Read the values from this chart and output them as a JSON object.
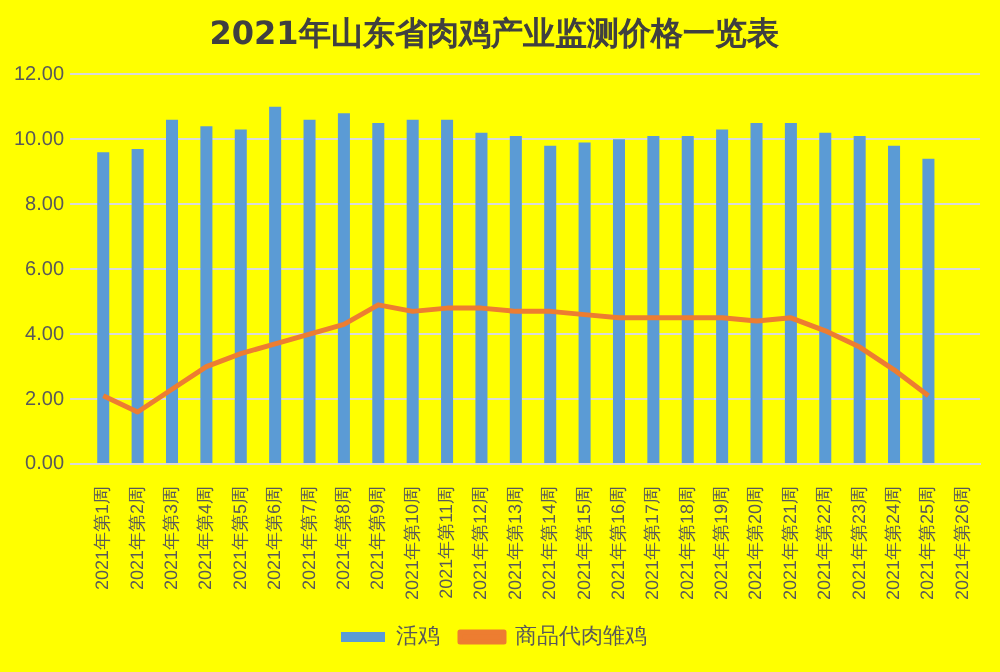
{
  "chart_data": {
    "type": "bar",
    "title": "2021年山东省肉鸡产业监测价格一览表",
    "categories": [
      "2021年第1周",
      "2021年第2周",
      "2021年第3周",
      "2021年第4周",
      "2021年第5周",
      "2021年第6周",
      "2021年第7周",
      "2021年第8周",
      "2021年第9周",
      "2021年第10周",
      "2021年第11周",
      "2021年第12周",
      "2021年第13周",
      "2021年第14周",
      "2021年第15周",
      "2021年第16周",
      "2021年第17周",
      "2021年第18周",
      "2021年第19周",
      "2021年第20周",
      "2021年第21周",
      "2021年第22周",
      "2021年第23周",
      "2021年第24周",
      "2021年第25周",
      "2021年第26周"
    ],
    "series": [
      {
        "name": "活鸡",
        "color": "#5b9bd5",
        "values": [
          9.6,
          9.7,
          10.6,
          10.4,
          10.3,
          11.0,
          10.6,
          10.8,
          10.5,
          10.6,
          10.6,
          10.2,
          10.1,
          9.8,
          9.9,
          10.0,
          10.1,
          10.1,
          10.3,
          10.5,
          10.5,
          10.2,
          10.1,
          9.8,
          9.4,
          null
        ]
      },
      {
        "name": "商品代肉雏鸡",
        "type": "line",
        "color": "#ed7d31",
        "values": [
          2.1,
          1.6,
          2.3,
          3.0,
          3.4,
          3.7,
          4.0,
          4.3,
          4.9,
          4.7,
          4.8,
          4.8,
          4.7,
          4.7,
          4.6,
          4.5,
          4.5,
          4.5,
          4.5,
          4.4,
          4.5,
          4.1,
          3.6,
          2.9,
          2.1,
          null
        ]
      }
    ],
    "ylim": [
      0,
      12
    ],
    "yticks": [
      {
        "value": 0,
        "label": "0.00"
      },
      {
        "value": 2,
        "label": "2.00"
      },
      {
        "value": 4,
        "label": "4.00"
      },
      {
        "value": 6,
        "label": "6.00"
      },
      {
        "value": 8,
        "label": "8.00"
      },
      {
        "value": 10,
        "label": "10.00"
      },
      {
        "value": 12,
        "label": "12.00"
      }
    ],
    "grid": "y",
    "legend": "bottom",
    "marker": "none",
    "line_style": "solid"
  }
}
